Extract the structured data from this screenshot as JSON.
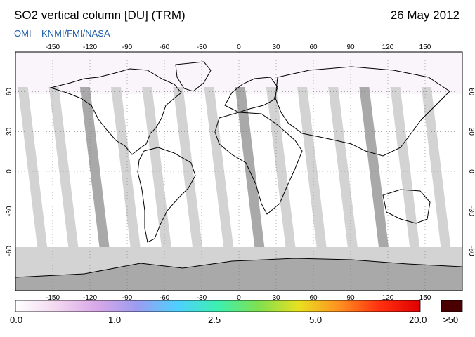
{
  "header": {
    "title": "SO2 vertical column [DU] (TRM)",
    "date": "26 May 2012",
    "subtitle": "OMI  –  KNMI/FMI/NASA"
  },
  "map": {
    "lon_ticks": [
      "-150",
      "-120",
      "-90",
      "-60",
      "-30",
      "0",
      "30",
      "60",
      "90",
      "120",
      "150"
    ],
    "lat_ticks": [
      "60",
      "30",
      "0",
      "-30",
      "-60"
    ],
    "colors": {
      "ocean_background": "#ffffff",
      "no_data_swath": "#d3d3d3",
      "overlap_swath": "#a9a9a9",
      "polar_no_data": "#d3d3d3",
      "antarctica": "#a9a9a9",
      "coastline": "#000000"
    }
  },
  "colorbar": {
    "labels": [
      "0.0",
      "1.0",
      "2.5",
      "5.0",
      "20.0"
    ],
    "overflow_label": ">50",
    "overflow_color": "#4a0000",
    "gradient_colors": [
      "#ffffff",
      "#f3d8f0",
      "#d9a8e8",
      "#9c9cf0",
      "#4fd0ff",
      "#3cf0b0",
      "#7fe050",
      "#e8e020",
      "#ff9020",
      "#ff3010",
      "#e00000"
    ]
  }
}
